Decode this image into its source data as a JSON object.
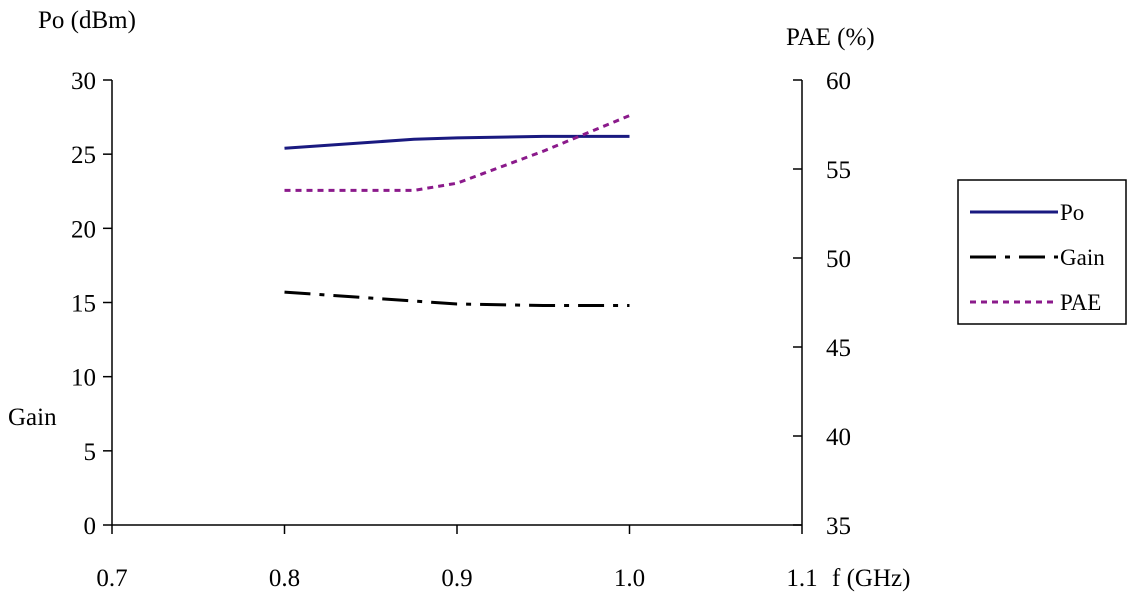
{
  "chart_data": {
    "type": "line",
    "x": [
      0.8,
      0.875,
      0.9,
      0.95,
      1.0
    ],
    "xlabel": "f (GHz)",
    "xlim": [
      0.7,
      1.1
    ],
    "xticks": [
      "0.7",
      "0.8",
      "0.9",
      "1.0",
      "1.1"
    ],
    "ylabel_left": "Po (dBm)",
    "ylabel_left_secondary": "Gain",
    "ylim_left": [
      0,
      30
    ],
    "yticks_left": [
      "0",
      "5",
      "10",
      "15",
      "20",
      "25",
      "30"
    ],
    "ylabel_right": "PAE (%)",
    "ylim_right": [
      35,
      60
    ],
    "yticks_right": [
      "35",
      "40",
      "45",
      "50",
      "55",
      "60"
    ],
    "grid": false,
    "legend_position": "right",
    "series": [
      {
        "name": "Po",
        "axis": "left",
        "style": "solid",
        "color": "#1a1a80",
        "values": [
          25.4,
          26.0,
          26.1,
          26.2,
          26.2
        ]
      },
      {
        "name": "Gain",
        "axis": "left",
        "style": "dash-dot",
        "color": "#000000",
        "values": [
          15.7,
          15.1,
          14.9,
          14.8,
          14.8
        ]
      },
      {
        "name": "PAE",
        "axis": "right",
        "style": "dotted",
        "color": "#8b1a8b",
        "values": [
          53.8,
          53.8,
          54.2,
          56.0,
          58.0
        ]
      }
    ]
  }
}
